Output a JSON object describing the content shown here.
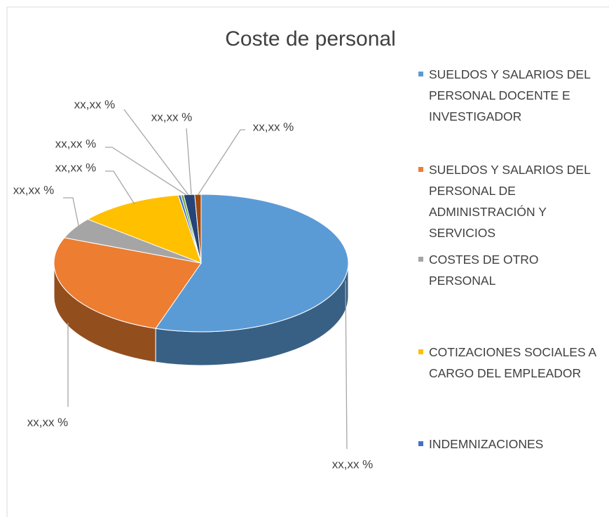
{
  "chart_data": {
    "type": "pie3d",
    "title": "Coste de personal",
    "categories": [
      "SUELDOS Y SALARIOS DEL PERSONAL DOCENTE E INVESTIGADOR",
      "SUELDOS Y SALARIOS DEL PERSONAL DE ADMINISTRACIÓN Y SERVICIOS",
      "COSTES DE OTRO PERSONAL",
      "COTIZACIONES SOCIALES A CARGO DEL EMPLEADOR",
      "INDEMNIZACIONES",
      null,
      null,
      null
    ],
    "values": [
      55,
      26,
      5,
      11.5,
      0.3,
      0.3,
      1.2,
      0.7
    ],
    "value_labels": [
      "xx,xx %",
      "xx,xx %",
      "xx,xx %",
      "xx,xx %",
      "xx,xx %",
      "xx,xx %",
      "xx,xx %",
      "xx,xx %"
    ],
    "colors": [
      "#5b9bd5",
      "#ed7d31",
      "#a5a5a5",
      "#ffc000",
      "#4472c4",
      "#70ad47",
      "#264478",
      "#9e480e"
    ],
    "legend": "right"
  }
}
